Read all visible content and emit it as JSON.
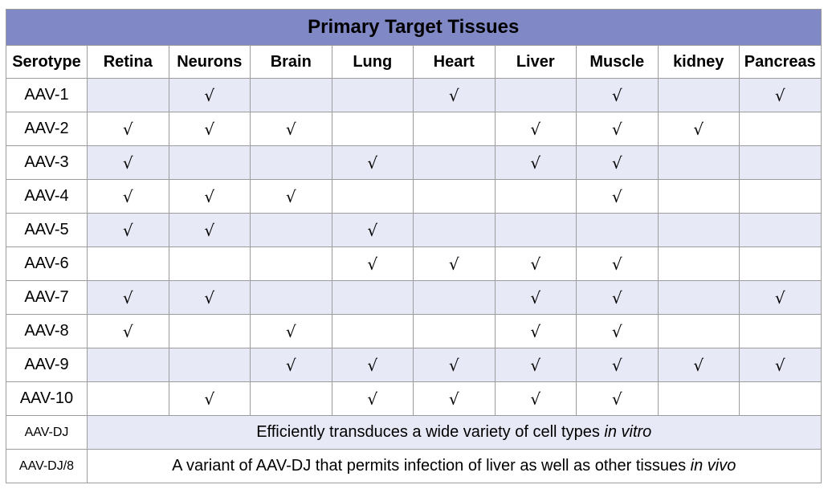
{
  "title": "Primary Target Tissues",
  "headers": [
    "Serotype",
    "Retina",
    "Neurons",
    "Brain",
    "Lung",
    "Heart",
    "Liver",
    "Muscle",
    "kidney",
    "Pancreas"
  ],
  "check_mark": "√",
  "rows": [
    {
      "serotype": "AAV-1",
      "cells": [
        "",
        "√",
        "",
        "",
        "√",
        "",
        "√",
        "",
        "√"
      ]
    },
    {
      "serotype": "AAV-2",
      "cells": [
        "√",
        "√",
        "√",
        "",
        "",
        "√",
        "√",
        "√",
        ""
      ]
    },
    {
      "serotype": "AAV-3",
      "cells": [
        "√",
        "",
        "",
        "√",
        "",
        "√",
        "√",
        "",
        ""
      ]
    },
    {
      "serotype": "AAV-4",
      "cells": [
        "√",
        "√",
        "√",
        "",
        "",
        "",
        "√",
        "",
        ""
      ]
    },
    {
      "serotype": "AAV-5",
      "cells": [
        "√",
        "√",
        "",
        "√",
        "",
        "",
        "",
        "",
        ""
      ]
    },
    {
      "serotype": "AAV-6",
      "cells": [
        "",
        "",
        "",
        "√",
        "√",
        "√",
        "√",
        "",
        ""
      ]
    },
    {
      "serotype": "AAV-7",
      "cells": [
        "√",
        "√",
        "",
        "",
        "",
        "√",
        "√",
        "",
        "√"
      ]
    },
    {
      "serotype": "AAV-8",
      "cells": [
        "√",
        "",
        "√",
        "",
        "",
        "√",
        "√",
        "",
        ""
      ]
    },
    {
      "serotype": "AAV-9",
      "cells": [
        "",
        "",
        "√",
        "√",
        "√",
        "√",
        "√",
        "√",
        "√"
      ]
    },
    {
      "serotype": "AAV-10",
      "cells": [
        "",
        "√",
        "",
        "√",
        "√",
        "√",
        "√",
        "",
        ""
      ]
    }
  ],
  "dj": {
    "serotype": "AAV-DJ",
    "text": "Efficiently transduces a wide variety of cell types ",
    "italic": "in vitro"
  },
  "dj8": {
    "serotype": "AAV-DJ/8",
    "text": "A variant of AAV-DJ that permits infection of liver as well as other tissues ",
    "italic": "in vivo"
  }
}
